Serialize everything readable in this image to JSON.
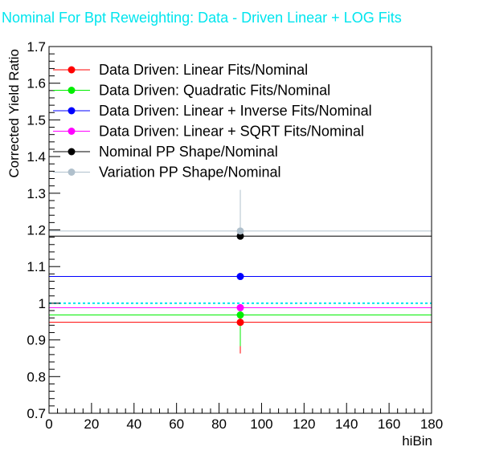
{
  "chart_data": {
    "type": "scatter",
    "title": "Nominal For Bpt Reweighting: Data - Driven Linear + LOG Fits",
    "xlabel": "hiBin",
    "ylabel": "Corrected Yield Ratio",
    "xlim": [
      0,
      180
    ],
    "ylim": [
      0.7,
      1.7
    ],
    "x_ticks": [
      "0",
      "20",
      "40",
      "60",
      "80",
      "100",
      "120",
      "140",
      "160",
      "180"
    ],
    "y_ticks": [
      "0.7",
      "0.8",
      "0.9",
      "1",
      "1.1",
      "1.2",
      "1.3",
      "1.4",
      "1.5",
      "1.6",
      "1.7"
    ],
    "reference_line": {
      "y": 1.0,
      "style": "dashed",
      "color": "#00e5ee"
    },
    "legend_position": "top-left",
    "grid": false,
    "series": [
      {
        "name": "Data Driven: Linear Fits/Nominal",
        "color": "#ff0000",
        "x": 90,
        "y": 0.948,
        "x_err": 90,
        "y_err_low": 0.085,
        "y_err_high": 0.0
      },
      {
        "name": "Data Driven: Quadratic Fits/Nominal",
        "color": "#00ee00",
        "x": 90,
        "y": 0.968,
        "x_err": 90,
        "y_err_low": 0.085,
        "y_err_high": 0.0
      },
      {
        "name": "Data Driven: Linear + Inverse Fits/Nominal",
        "color": "#0000ff",
        "x": 90,
        "y": 1.073,
        "x_err": 90,
        "y_err_low": 0.0,
        "y_err_high": 0.0
      },
      {
        "name": "Data Driven: Linear + SQRT Fits/Nominal",
        "color": "#ff00ff",
        "x": 90,
        "y": 0.988,
        "x_err": 90,
        "y_err_low": 0.0,
        "y_err_high": 0.0
      },
      {
        "name": "Nominal PP Shape/Nominal",
        "color": "#000000",
        "x": 90,
        "y": 1.183,
        "x_err": 90,
        "y_err_low": 0.0,
        "y_err_high": 0.0
      },
      {
        "name": "Variation PP Shape/Nominal",
        "color": "#b0c0cc",
        "x": 90,
        "y": 1.197,
        "x_err": 90,
        "y_err_low": 0.0,
        "y_err_high": 0.112
      }
    ]
  }
}
